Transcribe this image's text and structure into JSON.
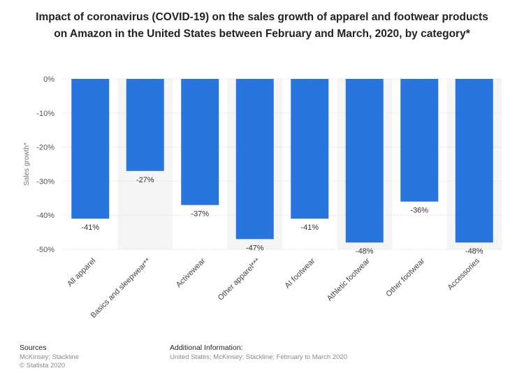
{
  "chart_data": {
    "type": "bar",
    "title": "Impact of coronavirus (COVID-19) on the sales growth of apparel and footwear products on Amazon in the United States between February and March, 2020, by category*",
    "xlabel": "",
    "ylabel": "Sales growth*",
    "ylim": [
      -50,
      0
    ],
    "yticks": [
      "0%",
      "-10%",
      "-20%",
      "-30%",
      "-40%",
      "-50%"
    ],
    "categories": [
      "All apparel",
      "Basics and sleepwear**",
      "Activewear",
      "Other apparel***",
      "AI footwear",
      "Athletic footwear",
      "Other footwear",
      "Accessories"
    ],
    "values": [
      -41,
      -27,
      -37,
      -47,
      -41,
      -48,
      -36,
      -48
    ],
    "value_labels": [
      "-41%",
      "-27%",
      "-37%",
      "-47%",
      "-41%",
      "-48%",
      "-36%",
      "-48%"
    ],
    "grid": true,
    "bar_color": "#2876dd"
  },
  "footer": {
    "sources_heading": "Sources",
    "sources_line1": "McKinsey; Stackline",
    "sources_line2": "© Statista 2020",
    "additional_heading": "Additional Information:",
    "additional_text": "United States; McKinsey; Stackline; February to March 2020"
  }
}
